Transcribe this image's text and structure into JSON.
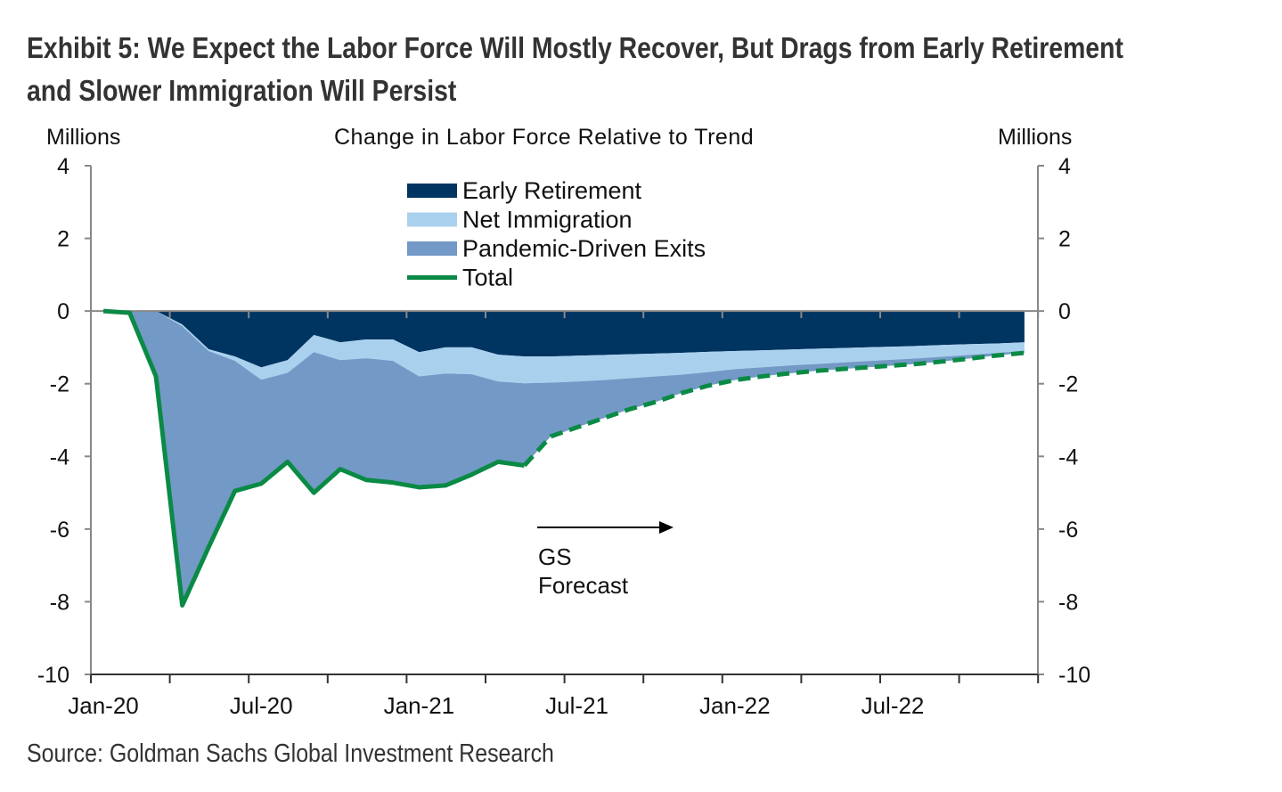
{
  "title_line1": "Exhibit 5: We Expect the Labor Force Will Mostly Recover, But Drags from Early Retirement",
  "title_line2": "and Slower Immigration Will Persist",
  "source": "Source: Goldman Sachs Global Investment Research",
  "chart_data": {
    "type": "area",
    "stacked": true,
    "title": "Change in Labor Force Relative to Trend",
    "ylabel_left": "Millions",
    "ylabel_right": "Millions",
    "ylim": [
      -10,
      4
    ],
    "yticks": [
      "4",
      "2",
      "0",
      "-2",
      "-4",
      "-6",
      "-8",
      "-10"
    ],
    "xtick_labels": [
      "Jan-20",
      "Jul-20",
      "Jan-21",
      "Jul-21",
      "Jan-22",
      "Jul-22"
    ],
    "grid": false,
    "legend_placement": "top-center",
    "x": [
      "Jan-20",
      "Feb-20",
      "Mar-20",
      "Apr-20",
      "May-20",
      "Jun-20",
      "Jul-20",
      "Aug-20",
      "Sep-20",
      "Oct-20",
      "Nov-20",
      "Dec-20",
      "Jan-21",
      "Feb-21",
      "Mar-21",
      "Apr-21",
      "May-21",
      "Jun-21",
      "Jul-21",
      "Aug-21",
      "Sep-21",
      "Oct-21",
      "Nov-21",
      "Dec-21",
      "Jan-22",
      "Feb-22",
      "Mar-22",
      "Apr-22",
      "May-22",
      "Jun-22",
      "Jul-22",
      "Aug-22",
      "Sep-22",
      "Oct-22",
      "Nov-22",
      "Dec-22"
    ],
    "forecast_start": "May-21",
    "annotation": {
      "line1": "GS",
      "line2": "Forecast"
    },
    "series": [
      {
        "name": "Early Retirement",
        "kind": "area",
        "color": "#003461",
        "values": [
          0,
          0,
          0,
          -0.37,
          -1.05,
          -1.25,
          -1.55,
          -1.35,
          -0.66,
          -0.86,
          -0.78,
          -0.78,
          -1.13,
          -1.0,
          -1.0,
          -1.2,
          -1.25,
          -1.25,
          -1.23,
          -1.21,
          -1.19,
          -1.17,
          -1.15,
          -1.12,
          -1.1,
          -1.08,
          -1.06,
          -1.04,
          -1.02,
          -1.0,
          -0.98,
          -0.96,
          -0.93,
          -0.91,
          -0.89,
          -0.86
        ]
      },
      {
        "name": "Net Immigration",
        "kind": "area",
        "color": "#a9d1ee",
        "values": [
          0,
          0,
          0,
          -0.05,
          -0.05,
          -0.12,
          -0.34,
          -0.35,
          -0.47,
          -0.49,
          -0.52,
          -0.59,
          -0.67,
          -0.72,
          -0.74,
          -0.74,
          -0.74,
          -0.72,
          -0.71,
          -0.69,
          -0.66,
          -0.63,
          -0.6,
          -0.56,
          -0.5,
          -0.47,
          -0.44,
          -0.42,
          -0.4,
          -0.38,
          -0.36,
          -0.34,
          -0.32,
          -0.29,
          -0.26,
          -0.24
        ]
      },
      {
        "name": "Pandemic-Driven Exits",
        "kind": "area",
        "color": "#7399c6",
        "values": [
          0,
          -0.05,
          -1.8,
          -7.68,
          -5.4,
          -3.58,
          -2.86,
          -2.45,
          -3.87,
          -3.0,
          -3.35,
          -3.35,
          -3.05,
          -3.08,
          -2.76,
          -2.21,
          -2.26,
          -1.48,
          -1.26,
          -1.05,
          -0.85,
          -0.7,
          -0.5,
          -0.37,
          -0.3,
          -0.25,
          -0.22,
          -0.19,
          -0.18,
          -0.17,
          -0.16,
          -0.15,
          -0.13,
          -0.1,
          -0.07,
          -0.05
        ]
      },
      {
        "name": "Total",
        "kind": "line",
        "color": "#0a8a45",
        "values": [
          0,
          -0.05,
          -1.8,
          -8.1,
          -6.5,
          -4.95,
          -4.75,
          -4.15,
          -5.0,
          -4.35,
          -4.65,
          -4.72,
          -4.85,
          -4.8,
          -4.5,
          -4.15,
          -4.25,
          -3.45,
          -3.2,
          -2.95,
          -2.7,
          -2.5,
          -2.25,
          -2.05,
          -1.9,
          -1.8,
          -1.72,
          -1.65,
          -1.6,
          -1.55,
          -1.5,
          -1.45,
          -1.38,
          -1.3,
          -1.22,
          -1.15
        ]
      }
    ]
  }
}
